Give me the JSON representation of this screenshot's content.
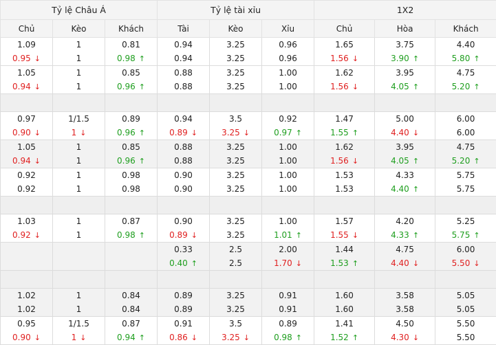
{
  "groups": [
    "Tỷ lệ Châu Á",
    "Tỷ lệ tài xỉu",
    "1X2"
  ],
  "columns": [
    "Chủ",
    "Kèo",
    "Khách",
    "Tài",
    "Kèo",
    "Xỉu",
    "Chủ",
    "Hòa",
    "Khách"
  ],
  "rows": [
    {
      "type": "data",
      "bg": "white",
      "cells": [
        [
          {
            "v": "1.09"
          },
          {
            "v": "0.95",
            "d": "down"
          }
        ],
        [
          {
            "v": "1"
          },
          {
            "v": "1"
          }
        ],
        [
          {
            "v": "0.81"
          },
          {
            "v": "0.98",
            "d": "up"
          }
        ],
        [
          {
            "v": "0.94"
          },
          {
            "v": "0.94"
          }
        ],
        [
          {
            "v": "3.25"
          },
          {
            "v": "3.25"
          }
        ],
        [
          {
            "v": "0.96"
          },
          {
            "v": "0.96"
          }
        ],
        [
          {
            "v": "1.65"
          },
          {
            "v": "1.56",
            "d": "down"
          }
        ],
        [
          {
            "v": "3.75"
          },
          {
            "v": "3.90",
            "d": "up"
          }
        ],
        [
          {
            "v": "4.40"
          },
          {
            "v": "5.80",
            "d": "up"
          }
        ]
      ]
    },
    {
      "type": "data",
      "bg": "white",
      "cells": [
        [
          {
            "v": "1.05"
          },
          {
            "v": "0.94",
            "d": "down"
          }
        ],
        [
          {
            "v": "1"
          },
          {
            "v": "1"
          }
        ],
        [
          {
            "v": "0.85"
          },
          {
            "v": "0.96",
            "d": "up"
          }
        ],
        [
          {
            "v": "0.88"
          },
          {
            "v": "0.88"
          }
        ],
        [
          {
            "v": "3.25"
          },
          {
            "v": "3.25"
          }
        ],
        [
          {
            "v": "1.00"
          },
          {
            "v": "1.00"
          }
        ],
        [
          {
            "v": "1.62"
          },
          {
            "v": "1.56",
            "d": "down"
          }
        ],
        [
          {
            "v": "3.95"
          },
          {
            "v": "4.05",
            "d": "up"
          }
        ],
        [
          {
            "v": "4.75"
          },
          {
            "v": "5.20",
            "d": "up"
          }
        ]
      ]
    },
    {
      "type": "spacer"
    },
    {
      "type": "data",
      "bg": "white",
      "cells": [
        [
          {
            "v": "0.97"
          },
          {
            "v": "0.90",
            "d": "down"
          }
        ],
        [
          {
            "v": "1/1.5"
          },
          {
            "v": "1",
            "d": "down"
          }
        ],
        [
          {
            "v": "0.89"
          },
          {
            "v": "0.96",
            "d": "up"
          }
        ],
        [
          {
            "v": "0.94"
          },
          {
            "v": "0.89",
            "d": "down"
          }
        ],
        [
          {
            "v": "3.5"
          },
          {
            "v": "3.25",
            "d": "down"
          }
        ],
        [
          {
            "v": "0.92"
          },
          {
            "v": "0.97",
            "d": "up"
          }
        ],
        [
          {
            "v": "1.47"
          },
          {
            "v": "1.55",
            "d": "up"
          }
        ],
        [
          {
            "v": "5.00"
          },
          {
            "v": "4.40",
            "d": "down"
          }
        ],
        [
          {
            "v": "6.00"
          },
          {
            "v": "6.00"
          }
        ]
      ]
    },
    {
      "type": "data",
      "bg": "alt",
      "cells": [
        [
          {
            "v": "1.05"
          },
          {
            "v": "0.94",
            "d": "down"
          }
        ],
        [
          {
            "v": "1"
          },
          {
            "v": "1"
          }
        ],
        [
          {
            "v": "0.85"
          },
          {
            "v": "0.96",
            "d": "up"
          }
        ],
        [
          {
            "v": "0.88"
          },
          {
            "v": "0.88"
          }
        ],
        [
          {
            "v": "3.25"
          },
          {
            "v": "3.25"
          }
        ],
        [
          {
            "v": "1.00"
          },
          {
            "v": "1.00"
          }
        ],
        [
          {
            "v": "1.62"
          },
          {
            "v": "1.56",
            "d": "down"
          }
        ],
        [
          {
            "v": "3.95"
          },
          {
            "v": "4.05",
            "d": "up"
          }
        ],
        [
          {
            "v": "4.75"
          },
          {
            "v": "5.20",
            "d": "up"
          }
        ]
      ]
    },
    {
      "type": "data",
      "bg": "white",
      "cells": [
        [
          {
            "v": "0.92"
          },
          {
            "v": "0.92"
          }
        ],
        [
          {
            "v": "1"
          },
          {
            "v": "1"
          }
        ],
        [
          {
            "v": "0.98"
          },
          {
            "v": "0.98"
          }
        ],
        [
          {
            "v": "0.90"
          },
          {
            "v": "0.90"
          }
        ],
        [
          {
            "v": "3.25"
          },
          {
            "v": "3.25"
          }
        ],
        [
          {
            "v": "1.00"
          },
          {
            "v": "1.00"
          }
        ],
        [
          {
            "v": "1.53"
          },
          {
            "v": "1.53"
          }
        ],
        [
          {
            "v": "4.33"
          },
          {
            "v": "4.40",
            "d": "up"
          }
        ],
        [
          {
            "v": "5.75"
          },
          {
            "v": "5.75"
          }
        ]
      ]
    },
    {
      "type": "spacer"
    },
    {
      "type": "data",
      "bg": "white",
      "cells": [
        [
          {
            "v": "1.03"
          },
          {
            "v": "0.92",
            "d": "down"
          }
        ],
        [
          {
            "v": "1"
          },
          {
            "v": "1"
          }
        ],
        [
          {
            "v": "0.87"
          },
          {
            "v": "0.98",
            "d": "up"
          }
        ],
        [
          {
            "v": "0.90"
          },
          {
            "v": "0.89",
            "d": "down"
          }
        ],
        [
          {
            "v": "3.25"
          },
          {
            "v": "3.25"
          }
        ],
        [
          {
            "v": "1.00"
          },
          {
            "v": "1.01",
            "d": "up"
          }
        ],
        [
          {
            "v": "1.57"
          },
          {
            "v": "1.55",
            "d": "down"
          }
        ],
        [
          {
            "v": "4.20"
          },
          {
            "v": "4.33",
            "d": "up"
          }
        ],
        [
          {
            "v": "5.25"
          },
          {
            "v": "5.75",
            "d": "up"
          }
        ]
      ]
    },
    {
      "type": "data",
      "bg": "alt",
      "cells": [
        [],
        [],
        [],
        [
          {
            "v": "0.33"
          },
          {
            "v": "0.40",
            "d": "up"
          }
        ],
        [
          {
            "v": "2.5"
          },
          {
            "v": "2.5"
          }
        ],
        [
          {
            "v": "2.00"
          },
          {
            "v": "1.70",
            "d": "down"
          }
        ],
        [
          {
            "v": "1.44"
          },
          {
            "v": "1.53",
            "d": "up"
          }
        ],
        [
          {
            "v": "4.75"
          },
          {
            "v": "4.40",
            "d": "down"
          }
        ],
        [
          {
            "v": "6.00"
          },
          {
            "v": "5.50",
            "d": "down"
          }
        ]
      ]
    },
    {
      "type": "spacer"
    },
    {
      "type": "data",
      "bg": "alt",
      "cells": [
        [
          {
            "v": "1.02"
          },
          {
            "v": "1.02"
          }
        ],
        [
          {
            "v": "1"
          },
          {
            "v": "1"
          }
        ],
        [
          {
            "v": "0.84"
          },
          {
            "v": "0.84"
          }
        ],
        [
          {
            "v": "0.89"
          },
          {
            "v": "0.89"
          }
        ],
        [
          {
            "v": "3.25"
          },
          {
            "v": "3.25"
          }
        ],
        [
          {
            "v": "0.91"
          },
          {
            "v": "0.91"
          }
        ],
        [
          {
            "v": "1.60"
          },
          {
            "v": "1.60"
          }
        ],
        [
          {
            "v": "3.58"
          },
          {
            "v": "3.58"
          }
        ],
        [
          {
            "v": "5.05"
          },
          {
            "v": "5.05"
          }
        ]
      ]
    },
    {
      "type": "data",
      "bg": "white",
      "cells": [
        [
          {
            "v": "0.95"
          },
          {
            "v": "0.90",
            "d": "down"
          }
        ],
        [
          {
            "v": "1/1.5"
          },
          {
            "v": "1",
            "d": "down"
          }
        ],
        [
          {
            "v": "0.87"
          },
          {
            "v": "0.94",
            "d": "up"
          }
        ],
        [
          {
            "v": "0.91"
          },
          {
            "v": "0.86",
            "d": "down"
          }
        ],
        [
          {
            "v": "3.5"
          },
          {
            "v": "3.25",
            "d": "down"
          }
        ],
        [
          {
            "v": "0.89"
          },
          {
            "v": "0.98",
            "d": "up"
          }
        ],
        [
          {
            "v": "1.41"
          },
          {
            "v": "1.52",
            "d": "up"
          }
        ],
        [
          {
            "v": "4.50"
          },
          {
            "v": "4.30",
            "d": "down"
          }
        ],
        [
          {
            "v": "5.50"
          },
          {
            "v": "5.50"
          }
        ]
      ]
    }
  ],
  "colors": {
    "down": "#e02020",
    "up": "#1e9e1e"
  },
  "icons": {
    "up": "arrow-up-icon",
    "down": "arrow-down-icon"
  }
}
